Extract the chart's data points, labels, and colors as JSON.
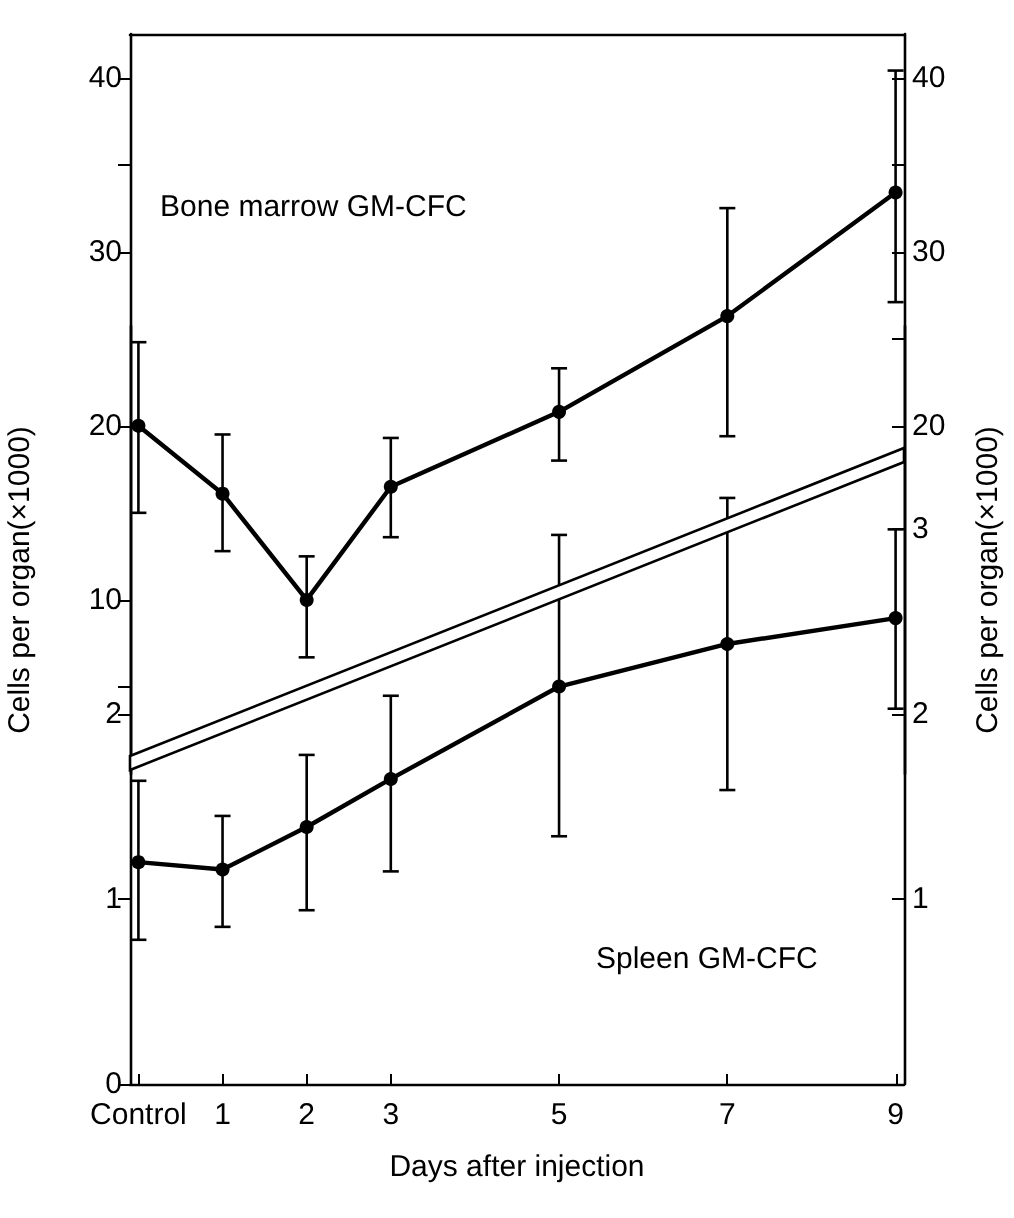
{
  "chart_data": [
    {
      "type": "line",
      "ylabel": "Cells per organ(×1000)",
      "y2label": "Cells per organ(×1000)",
      "x": [
        0,
        1,
        2,
        3,
        5,
        7,
        9
      ],
      "xlim": [
        -0.1,
        9.1
      ],
      "tick_labels": "y",
      "ylim": [
        0,
        42.5
      ],
      "yticks": [
        {
          "value": 5,
          "label": null
        },
        10,
        20,
        30,
        {
          "value": 35,
          "label": null
        },
        40
      ],
      "y2lim": [
        0,
        42.5
      ],
      "y2ticks": [
        20,
        {
          "value": 25,
          "label": null
        },
        30,
        {
          "value": 35,
          "label": null
        },
        40
      ],
      "series": [
        {
          "name": "Bone marrow GM-CFC",
          "color": "#000000",
          "values": [
            20,
            16.1,
            10,
            16.5,
            20.8,
            26.3,
            33.4
          ],
          "errors": [
            [
              15,
              24.8
            ],
            [
              12.8,
              19.5
            ],
            [
              6.7,
              12.5
            ],
            [
              13.6,
              19.3
            ],
            [
              18,
              23.3
            ],
            [
              19.4,
              32.5
            ],
            [
              27.1,
              40.4
            ]
          ]
        }
      ],
      "marker": "circle",
      "line_style": "solid"
    },
    {
      "type": "line",
      "xlabel": "Days after injection",
      "x": [
        0,
        1,
        2,
        3,
        5,
        7,
        9
      ],
      "xlim": [
        -0.1,
        9.1
      ],
      "xticks": [
        {
          "value": 0,
          "label": "Control"
        },
        1,
        2,
        3,
        5,
        7,
        9
      ],
      "ylim": [
        0,
        4.1
      ],
      "yticks": [
        0,
        1,
        2
      ],
      "y2lim": [
        0,
        4.1
      ],
      "y2ticks": [
        1,
        2,
        3
      ],
      "series": [
        {
          "name": "Spleen GM-CFC",
          "color": "#000000",
          "values": [
            1.2,
            1.16,
            1.39,
            1.65,
            2.15,
            2.38,
            2.52
          ],
          "errors": [
            [
              0.78,
              1.64
            ],
            [
              0.85,
              1.45
            ],
            [
              0.94,
              1.78
            ],
            [
              1.15,
              2.1
            ],
            [
              1.34,
              2.97
            ],
            [
              1.59,
              3.17
            ],
            [
              2.03,
              3.0
            ]
          ]
        }
      ],
      "marker": "circle",
      "line_style": "solid"
    }
  ]
}
